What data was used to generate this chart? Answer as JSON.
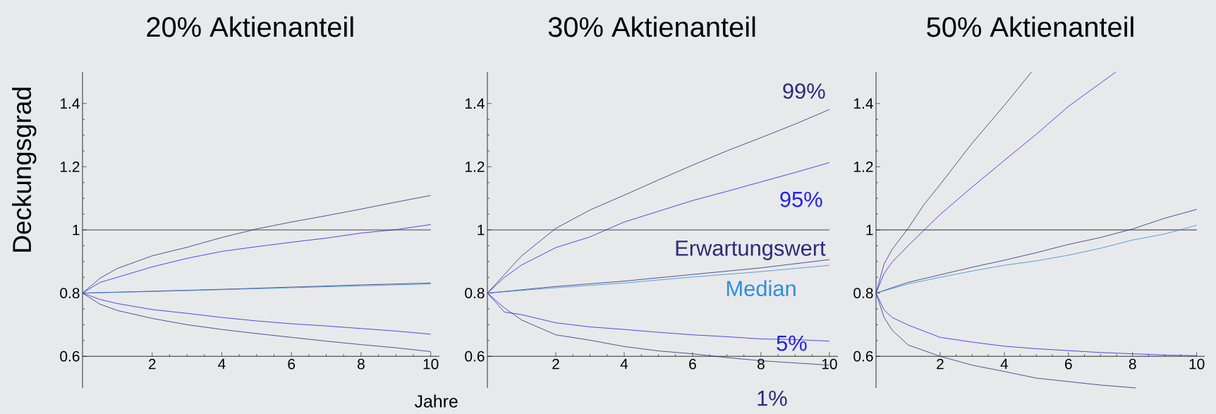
{
  "chart_data": [
    {
      "type": "line",
      "title": "20% Aktienanteil",
      "xlabel": "Jahre",
      "ylabel": "Deckungsgrad",
      "xlim": [
        0,
        10.25
      ],
      "ylim": [
        0.5,
        1.5
      ],
      "xticks": [
        2,
        4,
        6,
        8,
        10
      ],
      "yticks": [
        0.6,
        0.8,
        1,
        1.2,
        1.4
      ],
      "ref_lines": [
        {
          "axis": "y",
          "value": 1,
          "color": "#333333"
        }
      ],
      "series": [
        {
          "color": "#2b2b7a",
          "x": [
            0,
            0.5,
            1,
            2,
            3,
            4,
            5,
            6,
            7,
            8,
            9,
            10
          ],
          "values": [
            0.8,
            0.847,
            0.878,
            0.918,
            0.945,
            0.976,
            1.003,
            1.025,
            1.045,
            1.066,
            1.088,
            1.109
          ]
        },
        {
          "color": "#2222ee",
          "x": [
            0,
            0.5,
            1,
            2,
            3,
            4,
            5,
            6,
            7,
            8,
            9,
            10
          ],
          "values": [
            0.8,
            0.834,
            0.85,
            0.883,
            0.91,
            0.932,
            0.947,
            0.961,
            0.974,
            0.99,
            1.001,
            1.017
          ]
        },
        {
          "color": "#2b2b7a",
          "x": [
            0,
            2,
            4,
            6,
            8,
            10
          ],
          "values": [
            0.8,
            0.806,
            0.812,
            0.819,
            0.826,
            0.832
          ]
        },
        {
          "color": "#2e8ee0",
          "x": [
            0,
            2,
            4,
            6,
            8,
            10
          ],
          "values": [
            0.8,
            0.805,
            0.811,
            0.817,
            0.823,
            0.829
          ]
        },
        {
          "color": "#2222ee",
          "x": [
            0,
            0.5,
            1,
            2,
            3,
            4,
            5,
            6,
            7,
            8,
            9,
            10
          ],
          "values": [
            0.8,
            0.78,
            0.767,
            0.748,
            0.736,
            0.723,
            0.712,
            0.703,
            0.696,
            0.688,
            0.68,
            0.67
          ]
        },
        {
          "color": "#2b2b7a",
          "x": [
            0,
            0.5,
            1,
            2,
            3,
            4,
            5,
            6,
            7,
            8,
            9,
            10
          ],
          "values": [
            0.8,
            0.765,
            0.745,
            0.72,
            0.7,
            0.685,
            0.672,
            0.66,
            0.648,
            0.637,
            0.627,
            0.615
          ]
        }
      ]
    },
    {
      "type": "line",
      "title": "30% Aktienanteil",
      "xlim": [
        0,
        10.25
      ],
      "ylim": [
        0.5,
        1.5
      ],
      "xticks": [
        2,
        4,
        6,
        8,
        10
      ],
      "yticks": [
        0.6,
        0.8,
        1,
        1.2,
        1.4
      ],
      "ref_lines": [
        {
          "axis": "y",
          "value": 1,
          "color": "#333333"
        }
      ],
      "series": [
        {
          "name": "99%",
          "color": "#2b2b7a",
          "x": [
            0,
            0.5,
            1,
            2,
            3,
            4,
            5,
            6,
            7,
            8,
            9,
            10
          ],
          "values": [
            0.8,
            0.859,
            0.918,
            1.005,
            1.063,
            1.11,
            1.158,
            1.205,
            1.25,
            1.292,
            1.335,
            1.381
          ]
        },
        {
          "name": "95%",
          "color": "#2222ee",
          "x": [
            0,
            0.5,
            1,
            2,
            3,
            4,
            5,
            6,
            7,
            8,
            9,
            10
          ],
          "values": [
            0.8,
            0.85,
            0.889,
            0.944,
            0.978,
            1.025,
            1.059,
            1.093,
            1.122,
            1.152,
            1.182,
            1.213
          ]
        },
        {
          "name": "Erwartungswert",
          "color": "#2b2b7a",
          "x": [
            0,
            2,
            4,
            6,
            8,
            10
          ],
          "values": [
            0.8,
            0.821,
            0.838,
            0.859,
            0.88,
            0.906
          ]
        },
        {
          "name": "Median",
          "color": "#2e8ee0",
          "x": [
            0,
            2,
            4,
            6,
            8,
            10
          ],
          "values": [
            0.8,
            0.817,
            0.832,
            0.851,
            0.868,
            0.888
          ]
        },
        {
          "name": "5%",
          "color": "#2222ee",
          "x": [
            0,
            0.5,
            1,
            2,
            3,
            4,
            5,
            6,
            7,
            8,
            9,
            10
          ],
          "values": [
            0.8,
            0.74,
            0.732,
            0.706,
            0.693,
            0.685,
            0.676,
            0.668,
            0.662,
            0.655,
            0.653,
            0.648
          ]
        },
        {
          "name": "1%",
          "color": "#2b2b7a",
          "x": [
            0,
            0.5,
            1,
            2,
            3,
            4,
            5,
            6,
            7,
            8,
            9,
            10
          ],
          "values": [
            0.8,
            0.753,
            0.715,
            0.668,
            0.651,
            0.631,
            0.617,
            0.608,
            0.596,
            0.586,
            0.579,
            0.572
          ]
        }
      ]
    },
    {
      "type": "line",
      "title": "50% Aktienanteil",
      "xlim": [
        0,
        10.25
      ],
      "ylim": [
        0.5,
        1.5
      ],
      "xticks": [
        2,
        4,
        6,
        8,
        10
      ],
      "yticks": [
        0.6,
        0.8,
        1,
        1.2,
        1.4
      ],
      "ref_lines": [
        {
          "axis": "y",
          "value": 1,
          "color": "#1a1a1a"
        }
      ],
      "series": [
        {
          "color": "#2b2b7a",
          "x": [
            0,
            0.25,
            0.5,
            1,
            1.5,
            2,
            3,
            4,
            4.85
          ],
          "values": [
            0.8,
            0.892,
            0.938,
            1.005,
            1.081,
            1.144,
            1.275,
            1.394,
            1.5
          ]
        },
        {
          "color": "#2222ee",
          "x": [
            0,
            0.25,
            0.5,
            1,
            2,
            3,
            4,
            5,
            6,
            7.48
          ],
          "values": [
            0.8,
            0.862,
            0.898,
            0.95,
            1.049,
            1.136,
            1.22,
            1.303,
            1.391,
            1.5
          ]
        },
        {
          "color": "#2b2b7a",
          "x": [
            0,
            1,
            2,
            3,
            4,
            5,
            6,
            7,
            8,
            9,
            10
          ],
          "values": [
            0.8,
            0.834,
            0.858,
            0.882,
            0.904,
            0.928,
            0.954,
            0.976,
            1.003,
            1.037,
            1.065
          ]
        },
        {
          "color": "#2e8ee0",
          "x": [
            0,
            1,
            2,
            3,
            4,
            5,
            6,
            7,
            8,
            9,
            10
          ],
          "values": [
            0.8,
            0.829,
            0.85,
            0.87,
            0.888,
            0.902,
            0.92,
            0.942,
            0.968,
            0.987,
            1.015
          ]
        },
        {
          "color": "#2222ee",
          "x": [
            0,
            0.25,
            0.5,
            1,
            2,
            3,
            4,
            5,
            6,
            7,
            8,
            9,
            10
          ],
          "values": [
            0.8,
            0.747,
            0.723,
            0.699,
            0.66,
            0.645,
            0.632,
            0.624,
            0.618,
            0.612,
            0.608,
            0.604,
            0.602
          ]
        },
        {
          "color": "#2b2b7a",
          "x": [
            0,
            0.25,
            0.5,
            1,
            2,
            3,
            4,
            5,
            6,
            7,
            8.1
          ],
          "values": [
            0.8,
            0.723,
            0.683,
            0.636,
            0.6,
            0.572,
            0.552,
            0.531,
            0.52,
            0.509,
            0.5
          ]
        }
      ]
    }
  ]
}
